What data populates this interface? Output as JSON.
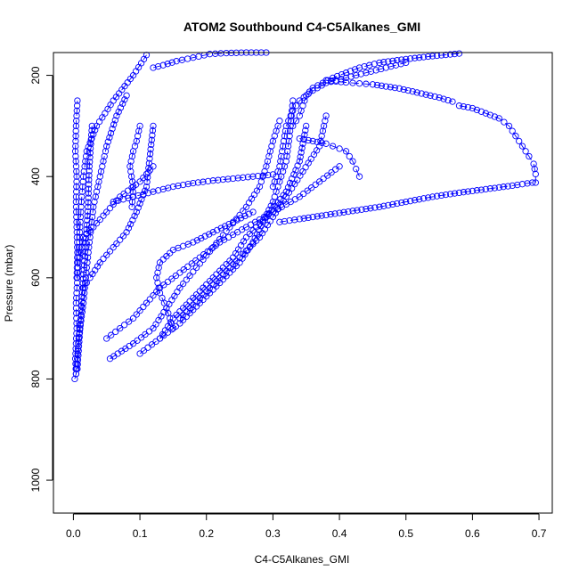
{
  "chart_data": {
    "type": "scatter",
    "title": "ATOM2 Southbound C4-C5Alkanes_GMI",
    "xlabel": "C4-C5Alkanes_GMI",
    "ylabel": "Pressure (mbar)",
    "xlim": [
      -0.03,
      0.72
    ],
    "ylim": [
      1065,
      155
    ],
    "y_reversed": true,
    "xticks": [
      0.0,
      0.1,
      0.2,
      0.3,
      0.4,
      0.5,
      0.6,
      0.7
    ],
    "xtick_labels": [
      "0.0",
      "0.1",
      "0.2",
      "0.3",
      "0.4",
      "0.5",
      "0.6",
      "0.7"
    ],
    "yticks": [
      200,
      400,
      600,
      800,
      1000
    ],
    "ytick_labels": [
      "200",
      "400",
      "600",
      "800",
      "1000"
    ],
    "marker": "open-circle",
    "color": "#0000ff",
    "grid": false,
    "series": [
      {
        "x": [
          0.002,
          0.004,
          0.003,
          0.005,
          0.004,
          0.006,
          0.008,
          0.01,
          0.012,
          0.015,
          0.02,
          0.035,
          0.06,
          0.09,
          0.11
        ],
        "y": [
          800,
          790,
          760,
          700,
          650,
          600,
          550,
          500,
          450,
          400,
          350,
          300,
          250,
          200,
          160
        ]
      },
      {
        "x": [
          0.004,
          0.008,
          0.015,
          0.02,
          0.025,
          0.03,
          0.04,
          0.05,
          0.065,
          0.08
        ],
        "y": [
          790,
          720,
          650,
          580,
          520,
          460,
          400,
          340,
          280,
          240
        ]
      },
      {
        "x": [
          0.006,
          0.01,
          0.014,
          0.018,
          0.022,
          0.024,
          0.028
        ],
        "y": [
          780,
          700,
          620,
          540,
          460,
          380,
          300
        ]
      },
      {
        "x": [
          0.055,
          0.09,
          0.12,
          0.14,
          0.16,
          0.185,
          0.21,
          0.235,
          0.26,
          0.28,
          0.29,
          0.3,
          0.31
        ],
        "y": [
          760,
          730,
          700,
          660,
          620,
          580,
          540,
          500,
          460,
          420,
          380,
          330,
          290
        ]
      },
      {
        "x": [
          0.1,
          0.13,
          0.16,
          0.19,
          0.22,
          0.25,
          0.27,
          0.285,
          0.3,
          0.31,
          0.32,
          0.325,
          0.33
        ],
        "y": [
          750,
          720,
          690,
          650,
          610,
          570,
          530,
          490,
          450,
          410,
          370,
          320,
          250
        ]
      },
      {
        "x": [
          0.13,
          0.15,
          0.18,
          0.21,
          0.24,
          0.26,
          0.29,
          0.32,
          0.34,
          0.35
        ],
        "y": [
          720,
          680,
          640,
          600,
          560,
          520,
          480,
          430,
          370,
          300
        ]
      },
      {
        "x": [
          0.15,
          0.14,
          0.13,
          0.125,
          0.13,
          0.15,
          0.18,
          0.21,
          0.24,
          0.27
        ],
        "y": [
          700,
          660,
          630,
          600,
          570,
          545,
          530,
          510,
          490,
          470
        ]
      },
      {
        "x": [
          0.16,
          0.19,
          0.22,
          0.25,
          0.28,
          0.3,
          0.32,
          0.345,
          0.37,
          0.38
        ],
        "y": [
          680,
          640,
          600,
          560,
          520,
          480,
          440,
          390,
          340,
          280
        ]
      },
      {
        "x": [
          0.05,
          0.07,
          0.09,
          0.11,
          0.13,
          0.16,
          0.19,
          0.22,
          0.26,
          0.3,
          0.34,
          0.37,
          0.4
        ],
        "y": [
          720,
          700,
          680,
          650,
          620,
          590,
          560,
          530,
          500,
          470,
          440,
          410,
          380
        ]
      },
      {
        "x": [
          0.3,
          0.31,
          0.315,
          0.32,
          0.33,
          0.34,
          0.36,
          0.38,
          0.41,
          0.44,
          0.47,
          0.5
        ],
        "y": [
          420,
          380,
          340,
          300,
          270,
          250,
          230,
          215,
          205,
          195,
          185,
          175
        ]
      },
      {
        "x": [
          0.33,
          0.34,
          0.345,
          0.35,
          0.36,
          0.375,
          0.39,
          0.41,
          0.43,
          0.46,
          0.5,
          0.54,
          0.58
        ],
        "y": [
          300,
          280,
          260,
          240,
          225,
          215,
          205,
          195,
          185,
          175,
          168,
          162,
          157
        ]
      },
      {
        "x": [
          0.38,
          0.395,
          0.41,
          0.43,
          0.45,
          0.47,
          0.49,
          0.51,
          0.53,
          0.55,
          0.57
        ],
        "y": [
          210,
          212,
          214,
          216,
          218,
          222,
          226,
          232,
          238,
          244,
          252
        ]
      },
      {
        "x": [
          0.58,
          0.6,
          0.62,
          0.64,
          0.655,
          0.665,
          0.675,
          0.685,
          0.692,
          0.695,
          0.695
        ],
        "y": [
          260,
          265,
          275,
          285,
          300,
          320,
          340,
          360,
          375,
          395,
          412
        ]
      },
      {
        "x": [
          0.69,
          0.66,
          0.62,
          0.58,
          0.54,
          0.5,
          0.46,
          0.42,
          0.38,
          0.34,
          0.31
        ],
        "y": [
          412,
          418,
          425,
          432,
          440,
          450,
          460,
          468,
          476,
          484,
          490
        ]
      },
      {
        "x": [
          0.43,
          0.425,
          0.42,
          0.415,
          0.41,
          0.4,
          0.39,
          0.38,
          0.36,
          0.34
        ],
        "y": [
          400,
          385,
          370,
          360,
          350,
          345,
          340,
          335,
          330,
          325
        ]
      },
      {
        "x": [
          0.06,
          0.09,
          0.12,
          0.15,
          0.18,
          0.21,
          0.24,
          0.27,
          0.3
        ],
        "y": [
          450,
          440,
          430,
          420,
          413,
          408,
          404,
          400,
          396
        ]
      },
      {
        "x": [
          0.12,
          0.135,
          0.155,
          0.18,
          0.205,
          0.23,
          0.26,
          0.29
        ],
        "y": [
          185,
          180,
          172,
          165,
          158,
          156,
          155,
          155
        ]
      },
      {
        "x": [
          0.1,
          0.095,
          0.09,
          0.085,
          0.09,
          0.088
        ],
        "y": [
          300,
          330,
          350,
          380,
          420,
          460
        ]
      },
      {
        "x": [
          0.005,
          0.006,
          0.005,
          0.004,
          0.005,
          0.003,
          0.004,
          0.006
        ],
        "y": [
          600,
          550,
          500,
          450,
          400,
          350,
          300,
          250
        ]
      },
      {
        "x": [
          0.01,
          0.015,
          0.03,
          0.05,
          0.07,
          0.1,
          0.12
        ],
        "y": [
          560,
          520,
          500,
          470,
          440,
          410,
          380
        ]
      },
      {
        "x": [
          0.015,
          0.025,
          0.04,
          0.06,
          0.08,
          0.095,
          0.11,
          0.12
        ],
        "y": [
          620,
          600,
          570,
          540,
          510,
          470,
          420,
          300
        ]
      }
    ]
  }
}
